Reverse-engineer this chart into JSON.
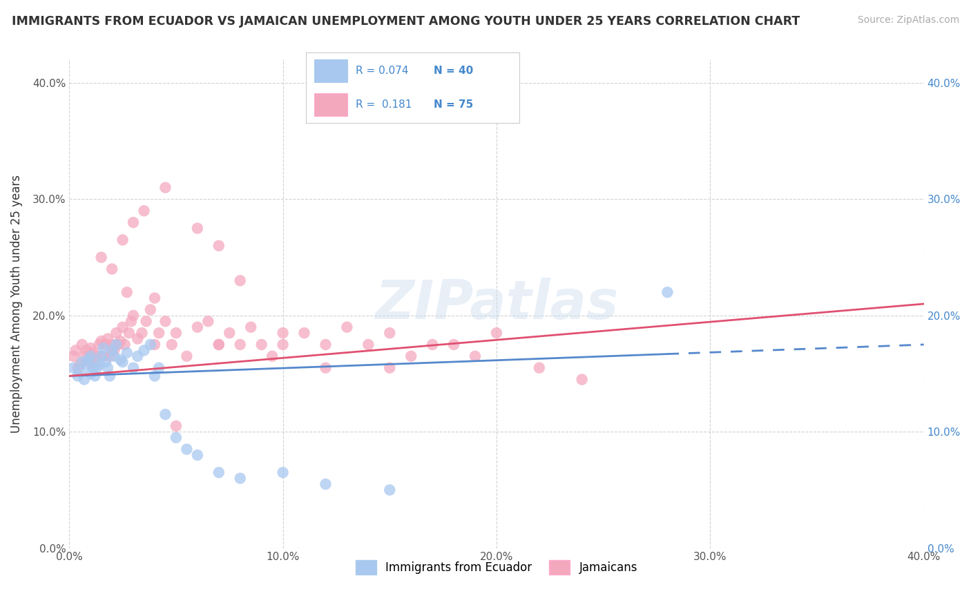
{
  "title": "IMMIGRANTS FROM ECUADOR VS JAMAICAN UNEMPLOYMENT AMONG YOUTH UNDER 25 YEARS CORRELATION CHART",
  "source": "Source: ZipAtlas.com",
  "ylabel": "Unemployment Among Youth under 25 years",
  "xlim": [
    0.0,
    0.4
  ],
  "ylim": [
    0.0,
    0.42
  ],
  "yticks": [
    0.0,
    0.1,
    0.2,
    0.3,
    0.4
  ],
  "ytick_labels": [
    "0.0%",
    "10.0%",
    "20.0%",
    "30.0%",
    "40.0%"
  ],
  "xticks": [
    0.0,
    0.1,
    0.2,
    0.3,
    0.4
  ],
  "xtick_labels": [
    "0.0%",
    "10.0%",
    "20.0%",
    "30.0%",
    "40.0%"
  ],
  "r_blue": 0.074,
  "n_blue": 40,
  "r_pink": 0.181,
  "n_pink": 75,
  "blue_color": "#A8C8F0",
  "pink_color": "#F4A8BE",
  "blue_line_color": "#5588CC",
  "pink_line_color": "#E05070",
  "legend_label_blue": "Immigrants from Ecuador",
  "legend_label_pink": "Jamaicans",
  "watermark": "ZIPatlas",
  "blue_x": [
    0.002,
    0.004,
    0.005,
    0.006,
    0.007,
    0.008,
    0.009,
    0.01,
    0.01,
    0.011,
    0.012,
    0.013,
    0.014,
    0.015,
    0.016,
    0.017,
    0.018,
    0.019,
    0.02,
    0.021,
    0.022,
    0.024,
    0.025,
    0.027,
    0.03,
    0.032,
    0.035,
    0.038,
    0.04,
    0.042,
    0.045,
    0.05,
    0.055,
    0.06,
    0.07,
    0.08,
    0.1,
    0.12,
    0.15,
    0.28
  ],
  "blue_y": [
    0.155,
    0.148,
    0.152,
    0.16,
    0.145,
    0.158,
    0.162,
    0.15,
    0.165,
    0.155,
    0.148,
    0.155,
    0.158,
    0.165,
    0.172,
    0.16,
    0.155,
    0.148,
    0.17,
    0.165,
    0.175,
    0.162,
    0.16,
    0.168,
    0.155,
    0.165,
    0.17,
    0.175,
    0.148,
    0.155,
    0.115,
    0.095,
    0.085,
    0.08,
    0.065,
    0.06,
    0.065,
    0.055,
    0.05,
    0.22
  ],
  "pink_x": [
    0.002,
    0.003,
    0.004,
    0.005,
    0.006,
    0.007,
    0.008,
    0.009,
    0.01,
    0.011,
    0.012,
    0.013,
    0.014,
    0.015,
    0.016,
    0.017,
    0.018,
    0.019,
    0.02,
    0.021,
    0.022,
    0.023,
    0.024,
    0.025,
    0.026,
    0.027,
    0.028,
    0.029,
    0.03,
    0.032,
    0.034,
    0.036,
    0.038,
    0.04,
    0.042,
    0.045,
    0.048,
    0.05,
    0.055,
    0.06,
    0.065,
    0.07,
    0.075,
    0.08,
    0.085,
    0.09,
    0.095,
    0.1,
    0.11,
    0.12,
    0.13,
    0.14,
    0.15,
    0.16,
    0.17,
    0.18,
    0.19,
    0.2,
    0.22,
    0.24,
    0.015,
    0.025,
    0.035,
    0.045,
    0.06,
    0.07,
    0.08,
    0.1,
    0.12,
    0.15,
    0.02,
    0.03,
    0.04,
    0.05,
    0.07
  ],
  "pink_y": [
    0.165,
    0.17,
    0.155,
    0.158,
    0.175,
    0.165,
    0.17,
    0.16,
    0.172,
    0.168,
    0.158,
    0.165,
    0.175,
    0.178,
    0.165,
    0.175,
    0.18,
    0.165,
    0.175,
    0.17,
    0.185,
    0.175,
    0.178,
    0.19,
    0.175,
    0.22,
    0.185,
    0.195,
    0.2,
    0.18,
    0.185,
    0.195,
    0.205,
    0.175,
    0.185,
    0.195,
    0.175,
    0.185,
    0.165,
    0.19,
    0.195,
    0.175,
    0.185,
    0.175,
    0.19,
    0.175,
    0.165,
    0.175,
    0.185,
    0.175,
    0.19,
    0.175,
    0.185,
    0.165,
    0.175,
    0.175,
    0.165,
    0.185,
    0.155,
    0.145,
    0.25,
    0.265,
    0.29,
    0.31,
    0.275,
    0.26,
    0.23,
    0.185,
    0.155,
    0.155,
    0.24,
    0.28,
    0.215,
    0.105,
    0.175
  ]
}
